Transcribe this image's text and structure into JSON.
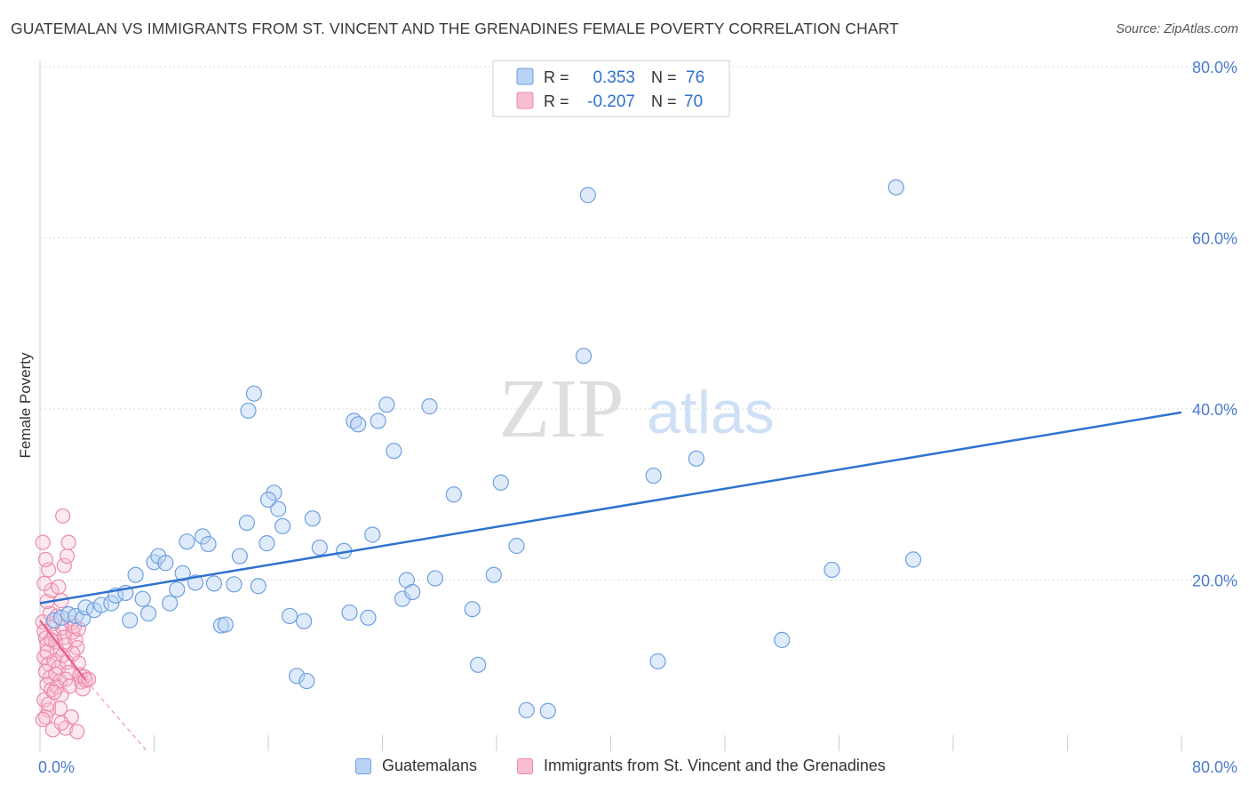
{
  "header": {
    "title": "GUATEMALAN VS IMMIGRANTS FROM ST. VINCENT AND THE GRENADINES FEMALE POVERTY CORRELATION CHART",
    "source": "Source: ZipAtlas.com"
  },
  "watermark": {
    "zip": "ZIP",
    "atlas": "atlas"
  },
  "colors": {
    "blue_fill": "#b9d3f5",
    "blue_stroke": "#6f9fe0",
    "blue_line": "#2f72d0",
    "pink_fill": "#f7bed1",
    "pink_stroke": "#ec8aab",
    "pink_line": "#e8608e",
    "axis_text": "#4a7bd0",
    "grid": "#d9d9d9"
  },
  "legend": {
    "rows": [
      {
        "r_label": "R =",
        "r_value": "0.353",
        "n_label": "N =",
        "n_value": "76"
      },
      {
        "r_label": "R =",
        "r_value": "-0.207",
        "n_label": "N =",
        "n_value": "70"
      }
    ]
  },
  "chart_data": {
    "type": "scatter",
    "title": "GUATEMALAN VS IMMIGRANTS FROM ST. VINCENT AND THE GRENADINES FEMALE POVERTY CORRELATION CHART",
    "xlabel": "",
    "ylabel": "Female Poverty",
    "xlim": [
      0,
      80
    ],
    "ylim": [
      0,
      80
    ],
    "x_tick_labels": [
      "0.0%",
      "80.0%"
    ],
    "y_ticks": [
      20,
      40,
      60,
      80
    ],
    "y_tick_labels": [
      "20.0%",
      "40.0%",
      "60.0%",
      "80.0%"
    ],
    "grid": true,
    "legend_placement": "bottom",
    "series": [
      {
        "name": "Guatemalans",
        "color": "#6f9fe0",
        "r": 0.353,
        "n": 76,
        "trend": {
          "x0": 0,
          "y0": 17.3,
          "x1": 80,
          "y1": 39.6
        },
        "points": [
          [
            1.0,
            15.3
          ],
          [
            1.5,
            15.6
          ],
          [
            2.0,
            16.0
          ],
          [
            2.5,
            15.8
          ],
          [
            3.0,
            15.5
          ],
          [
            3.2,
            16.8
          ],
          [
            3.8,
            16.5
          ],
          [
            4.3,
            17.1
          ],
          [
            5.0,
            17.3
          ],
          [
            5.3,
            18.2
          ],
          [
            6.0,
            18.5
          ],
          [
            6.3,
            15.3
          ],
          [
            6.7,
            20.6
          ],
          [
            7.2,
            17.8
          ],
          [
            7.6,
            16.1
          ],
          [
            8.0,
            22.1
          ],
          [
            8.3,
            22.8
          ],
          [
            8.8,
            22.0
          ],
          [
            9.1,
            17.3
          ],
          [
            9.6,
            18.9
          ],
          [
            10.0,
            20.8
          ],
          [
            10.3,
            24.5
          ],
          [
            10.9,
            19.7
          ],
          [
            11.4,
            25.1
          ],
          [
            11.8,
            24.2
          ],
          [
            12.2,
            19.6
          ],
          [
            12.7,
            14.7
          ],
          [
            13.0,
            14.8
          ],
          [
            13.6,
            19.5
          ],
          [
            14.0,
            22.8
          ],
          [
            14.6,
            39.8
          ],
          [
            15.0,
            41.8
          ],
          [
            15.3,
            19.3
          ],
          [
            15.9,
            24.3
          ],
          [
            16.4,
            30.2
          ],
          [
            16.7,
            28.3
          ],
          [
            17.0,
            26.3
          ],
          [
            17.5,
            15.8
          ],
          [
            18.0,
            8.8
          ],
          [
            18.5,
            15.2
          ],
          [
            18.7,
            8.2
          ],
          [
            19.1,
            27.2
          ],
          [
            19.6,
            23.8
          ],
          [
            21.3,
            23.4
          ],
          [
            21.7,
            16.2
          ],
          [
            22.0,
            38.6
          ],
          [
            22.3,
            38.2
          ],
          [
            23.0,
            15.6
          ],
          [
            23.3,
            25.3
          ],
          [
            23.7,
            38.6
          ],
          [
            24.3,
            40.5
          ],
          [
            24.8,
            35.1
          ],
          [
            25.4,
            17.8
          ],
          [
            25.7,
            20.0
          ],
          [
            26.1,
            18.6
          ],
          [
            27.3,
            40.3
          ],
          [
            27.7,
            20.2
          ],
          [
            29.0,
            30.0
          ],
          [
            30.3,
            16.6
          ],
          [
            30.7,
            10.1
          ],
          [
            31.8,
            20.6
          ],
          [
            32.3,
            31.4
          ],
          [
            33.4,
            24.0
          ],
          [
            34.1,
            4.8
          ],
          [
            35.6,
            4.7
          ],
          [
            38.1,
            46.2
          ],
          [
            38.4,
            65.0
          ],
          [
            43.0,
            32.2
          ],
          [
            43.3,
            10.5
          ],
          [
            46.0,
            34.2
          ],
          [
            52.0,
            13.0
          ],
          [
            55.5,
            21.2
          ],
          [
            60.0,
            65.9
          ],
          [
            61.2,
            22.4
          ],
          [
            16.0,
            29.4
          ],
          [
            14.5,
            26.7
          ]
        ]
      },
      {
        "name": "Immigrants from St. Vincent and the Grenadines",
        "color": "#ec8aab",
        "r": -0.207,
        "n": 70,
        "trend": {
          "x0": 0,
          "y0": 15.3,
          "x1": 3.2,
          "y1": 8.3
        },
        "trend_dashed": {
          "x0": 3.2,
          "y0": 8.3,
          "x1": 7.5,
          "y1": 0
        },
        "points": [
          [
            0.2,
            15.1
          ],
          [
            0.3,
            14.0
          ],
          [
            0.4,
            13.2
          ],
          [
            0.5,
            12.5
          ],
          [
            0.3,
            11.0
          ],
          [
            0.6,
            10.2
          ],
          [
            0.4,
            9.3
          ],
          [
            0.7,
            8.6
          ],
          [
            0.5,
            7.8
          ],
          [
            0.8,
            7.2
          ],
          [
            0.3,
            6.0
          ],
          [
            0.6,
            4.8
          ],
          [
            0.4,
            4.0
          ],
          [
            0.2,
            3.7
          ],
          [
            0.9,
            14.9
          ],
          [
            1.0,
            13.6
          ],
          [
            1.1,
            12.8
          ],
          [
            1.2,
            11.8
          ],
          [
            1.0,
            10.6
          ],
          [
            1.3,
            9.8
          ],
          [
            1.1,
            9.0
          ],
          [
            1.4,
            8.2
          ],
          [
            1.2,
            7.5
          ],
          [
            1.5,
            6.6
          ],
          [
            0.7,
            16.1
          ],
          [
            0.5,
            17.5
          ],
          [
            0.8,
            18.8
          ],
          [
            0.3,
            19.6
          ],
          [
            0.6,
            21.2
          ],
          [
            0.4,
            22.4
          ],
          [
            0.2,
            24.4
          ],
          [
            1.6,
            14.4
          ],
          [
            1.7,
            13.3
          ],
          [
            1.8,
            12.4
          ],
          [
            1.6,
            11.2
          ],
          [
            1.9,
            10.4
          ],
          [
            2.0,
            9.2
          ],
          [
            1.8,
            8.4
          ],
          [
            2.1,
            7.6
          ],
          [
            2.2,
            15.0
          ],
          [
            2.3,
            13.9
          ],
          [
            2.4,
            14.6
          ],
          [
            2.5,
            13.0
          ],
          [
            2.6,
            12.1
          ],
          [
            2.7,
            10.3
          ],
          [
            2.8,
            8.9
          ],
          [
            2.9,
            8.1
          ],
          [
            3.0,
            7.3
          ],
          [
            3.1,
            8.7
          ],
          [
            3.2,
            8.3
          ],
          [
            1.5,
            17.6
          ],
          [
            1.3,
            19.2
          ],
          [
            1.7,
            21.7
          ],
          [
            1.9,
            22.8
          ],
          [
            2.0,
            24.4
          ],
          [
            1.6,
            27.5
          ],
          [
            0.9,
            2.5
          ],
          [
            1.4,
            5.0
          ],
          [
            1.8,
            2.7
          ],
          [
            2.2,
            4.0
          ],
          [
            2.6,
            2.3
          ],
          [
            3.4,
            8.4
          ],
          [
            1.2,
            15.8
          ],
          [
            0.8,
            13.0
          ],
          [
            0.5,
            11.6
          ],
          [
            2.3,
            11.4
          ],
          [
            2.7,
            14.3
          ],
          [
            0.6,
            5.5
          ],
          [
            1.0,
            6.9
          ],
          [
            1.5,
            3.3
          ]
        ]
      }
    ]
  }
}
